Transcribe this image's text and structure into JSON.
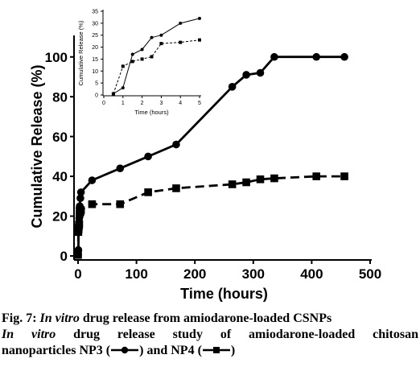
{
  "chart_data": [
    {
      "type": "line",
      "xlabel": "Time (hours)",
      "ylabel": "Cumulative Release (%)",
      "xlim": [
        0,
        500
      ],
      "ylim": [
        0,
        110
      ],
      "xticks": [
        0,
        100,
        200,
        300,
        400,
        500
      ],
      "yticks": [
        0,
        20,
        40,
        60,
        80,
        100
      ],
      "grid": false,
      "series": [
        {
          "marker": "circle",
          "line": "solid",
          "x": [
            0,
            0.5,
            1,
            1.5,
            2,
            2.5,
            3,
            4,
            5,
            24,
            72,
            120,
            168,
            264,
            288,
            312,
            336,
            408,
            456
          ],
          "y": [
            0.5,
            3,
            12,
            17,
            19,
            24,
            25,
            29,
            32,
            38,
            44,
            50,
            56,
            85,
            91,
            92,
            100,
            100,
            100
          ]
        },
        {
          "marker": "square",
          "line": "dashed",
          "x": [
            0,
            0.5,
            1,
            1.5,
            2,
            2.5,
            3,
            4,
            5,
            24,
            72,
            120,
            168,
            264,
            288,
            312,
            336,
            408,
            456
          ],
          "y": [
            0.5,
            12,
            14,
            15,
            16,
            21,
            22,
            22,
            23,
            26,
            26,
            32,
            34,
            36,
            37,
            38.5,
            39,
            40,
            40
          ]
        }
      ]
    },
    {
      "type": "line",
      "xlabel": "Time (hours)",
      "ylabel": "Cumulative Release (%)",
      "xlim": [
        0,
        5
      ],
      "ylim": [
        0,
        35
      ],
      "xticks": [
        0,
        1,
        2,
        3,
        4,
        5
      ],
      "yticks": [
        0,
        5,
        10,
        15,
        20,
        25,
        30,
        35
      ],
      "grid": false,
      "series": [
        {
          "marker": "circle",
          "line": "solid",
          "x": [
            0.5,
            1,
            1.5,
            2,
            2.5,
            3,
            4,
            5
          ],
          "y": [
            0.5,
            3,
            17,
            19,
            24,
            25,
            30,
            32
          ]
        },
        {
          "marker": "square",
          "line": "dashed",
          "x": [
            0.5,
            1,
            1.5,
            2,
            2.5,
            3,
            4,
            5
          ],
          "y": [
            0.5,
            12,
            14,
            15,
            16,
            21.5,
            22,
            23
          ]
        }
      ]
    }
  ],
  "caption": {
    "fig_label": "Fig. 7: ",
    "fig_italic": "In vitro",
    "fig_rest": " drug release from amiodarone-loaded CSNPs",
    "line2_italic": "In vitro",
    "line2_rest": " drug release study of amiodarone-loaded chitosan",
    "line3_a": "nanoparticles NP3 (",
    "line3_b": ") and NP4 (",
    "line3_c": ")"
  }
}
